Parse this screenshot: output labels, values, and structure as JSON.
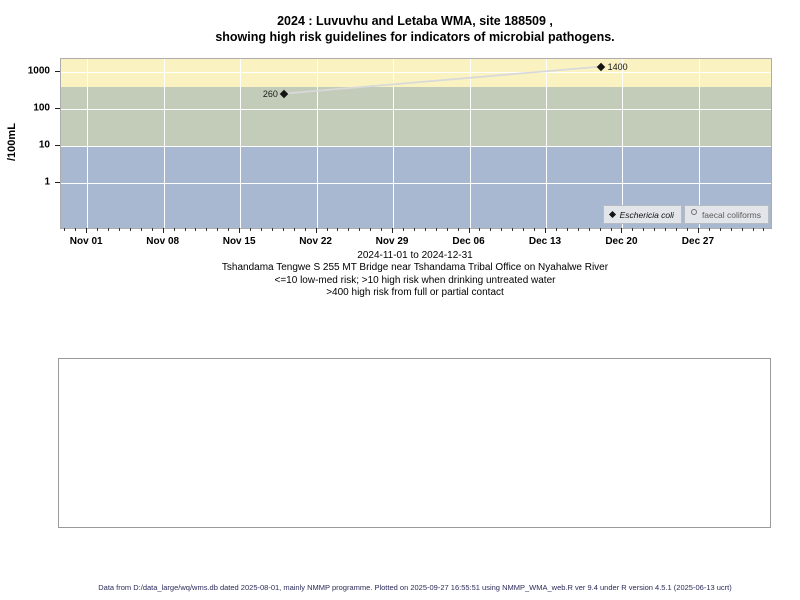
{
  "title": {
    "line1": "2024 : Luvuvhu and Letaba WMA, site 188509 ,",
    "line2": "showing high risk guidelines for indicators of microbial pathogens."
  },
  "chart_data": {
    "type": "scatter",
    "title": "2024 : Luvuvhu and Letaba WMA, site 188509 , showing high risk guidelines for indicators of microbial pathogens.",
    "y_axis": {
      "label": "/100mL",
      "scale": "log10",
      "ylim": [
        0.06,
        2250
      ],
      "ticks": [
        {
          "value": 1,
          "label": "1"
        },
        {
          "value": 10,
          "label": "10"
        },
        {
          "value": 100,
          "label": "100"
        },
        {
          "value": 1000,
          "label": "1000"
        }
      ]
    },
    "x_axis": {
      "period_label": "2024-11-01 to 2024-12-31",
      "domain_days": [
        -2.4,
        62.6
      ],
      "minor_tick_every_days": 1,
      "ticks": [
        {
          "day": 0,
          "label": "Nov 01"
        },
        {
          "day": 7,
          "label": "Nov 08"
        },
        {
          "day": 14,
          "label": "Nov 15"
        },
        {
          "day": 21,
          "label": "Nov 22"
        },
        {
          "day": 28,
          "label": "Nov 29"
        },
        {
          "day": 35,
          "label": "Dec 06"
        },
        {
          "day": 42,
          "label": "Dec 13"
        },
        {
          "day": 49,
          "label": "Dec 20"
        },
        {
          "day": 56,
          "label": "Dec 27"
        }
      ]
    },
    "guide_bands": [
      {
        "label": "high risk from full or partial contact (>400)",
        "from": 400,
        "to": 2250,
        "color": "#faf3c1"
      },
      {
        "label": "high risk when drinking untreated water (>10)",
        "from": 10,
        "to": 400,
        "color": "#c2ccb8"
      },
      {
        "label": "low-med risk (<=10)",
        "from": 0.06,
        "to": 10,
        "color": "#a8b8d1"
      }
    ],
    "grid": {
      "color": "#ffffff",
      "x_weekly": true,
      "y_decades": [
        1,
        10,
        100,
        1000
      ]
    },
    "series": [
      {
        "name": "Eschericia coli",
        "marker": "filled-diamond",
        "color": "#141414",
        "line_color": "#d9d9d9",
        "points": [
          {
            "day": 18,
            "date": "2024-11-19",
            "value": 260,
            "label": "260",
            "label_side": "left"
          },
          {
            "day": 47,
            "date": "2024-12-18",
            "value": 1400,
            "label": "1400",
            "label_side": "right"
          }
        ]
      },
      {
        "name": "faecal coliforms",
        "marker": "open-circle",
        "color": "#6f6f6f",
        "points": []
      }
    ]
  },
  "legend": {
    "items": [
      {
        "label": "Eschericia coli",
        "marker": "filled-diamond"
      },
      {
        "label": "faecal coliforms",
        "marker": "open-circle"
      }
    ]
  },
  "caption": {
    "lines": [
      "2024-11-01 to 2024-12-31",
      "Tshandama Tengwe S 255 MT Bridge near Tshandama Tribal Office on Nyahalwe River",
      "<=10 low-med risk; >10 high risk when drinking untreated water",
      ">400 high risk from full or partial contact"
    ]
  },
  "footer": {
    "text": "Data from D:/data_large/wq/wms.db dated 2025-08-01, mainly NMMP programme. Plotted on 2025-09-27 16:55:51 using NMMP_WMA_web.R ver 9.4 under R version 4.5.1 (2025-06-13 ucrt)"
  }
}
